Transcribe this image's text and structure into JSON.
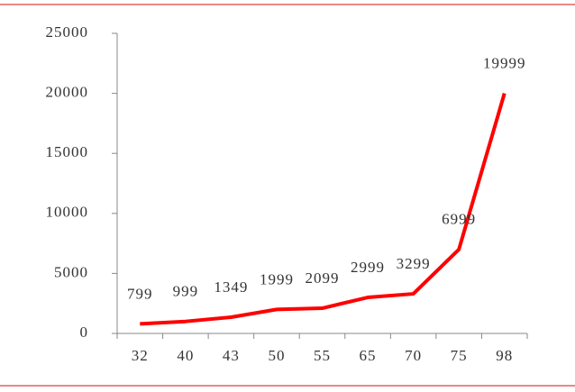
{
  "chart_data": {
    "type": "line",
    "categories": [
      "32",
      "40",
      "43",
      "50",
      "55",
      "65",
      "70",
      "75",
      "98"
    ],
    "values": [
      799,
      999,
      1349,
      1999,
      2099,
      2999,
      3299,
      6999,
      19999
    ],
    "color": "#ff0000",
    "ylim": [
      0,
      25000
    ],
    "yticks": [
      0,
      5000,
      10000,
      15000,
      20000,
      25000
    ]
  }
}
